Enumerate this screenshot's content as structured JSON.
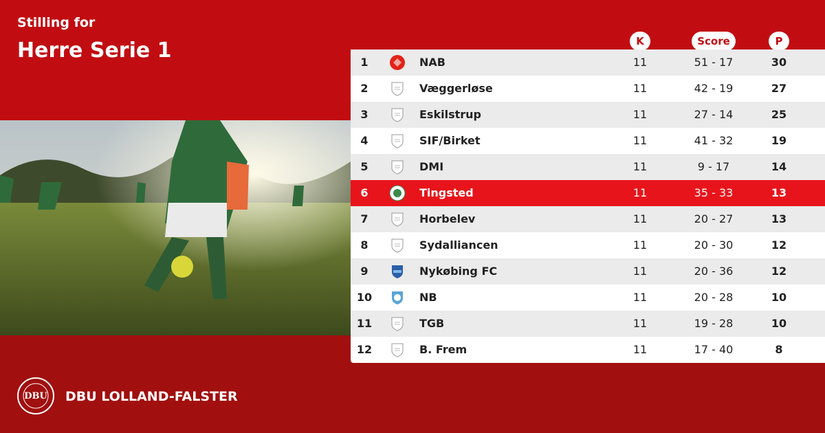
{
  "header": {
    "subtitle": "Stilling for",
    "title": "Herre Serie 1"
  },
  "table": {
    "columns": [
      "K",
      "Score",
      "P"
    ],
    "rows": [
      [
        1,
        "NAB",
        11,
        "51 - 17",
        30
      ],
      [
        2,
        "Væggerløse",
        11,
        "42 - 19",
        27
      ],
      [
        3,
        "Eskilstrup",
        11,
        "27 - 14",
        25
      ],
      [
        4,
        "SIF/Birket",
        11,
        "41 - 32",
        19
      ],
      [
        5,
        "DMI",
        11,
        "9 - 17",
        14
      ],
      [
        6,
        "Tingsted",
        11,
        "35 - 33",
        13
      ],
      [
        7,
        "Horbelev",
        11,
        "20 - 27",
        13
      ],
      [
        8,
        "Sydalliancen",
        11,
        "20 - 30",
        12
      ],
      [
        9,
        "Nykøbing FC",
        11,
        "20 - 36",
        12
      ],
      [
        10,
        "NB",
        11,
        "20 - 28",
        10
      ],
      [
        11,
        "TGB",
        11,
        "19 - 28",
        10
      ],
      [
        12,
        "B. Frem",
        11,
        "17 - 40",
        8
      ]
    ],
    "highlight_row": 5
  },
  "footer": {
    "logo": "DBU",
    "organization": "DBU LOLLAND-FALSTER"
  }
}
